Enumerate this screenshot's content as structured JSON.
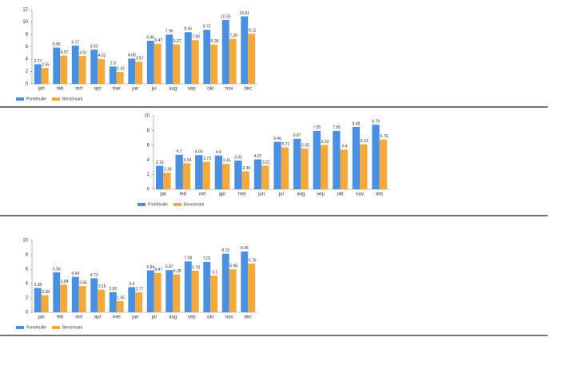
{
  "chart_data": [
    {
      "type": "bar",
      "categories": [
        "jan",
        "feb",
        "mrt",
        "apr",
        "mei",
        "jun",
        "jul",
        "aug",
        "sep",
        "okt",
        "nov",
        "dec"
      ],
      "series": [
        {
          "name": "Portefeuille",
          "color": "#4a90e2",
          "values": [
            3.17,
            5.86,
            6.17,
            5.53,
            2.8,
            4.08,
            6.96,
            7.96,
            8.35,
            8.72,
            10.33,
            10.91
          ]
        },
        {
          "name": "Benchmark",
          "color": "#f5a93a",
          "values": [
            2.55,
            4.57,
            4.51,
            4.02,
            1.92,
            3.57,
            6.47,
            6.37,
            7.06,
            6.36,
            7.28,
            8.11
          ]
        }
      ],
      "ylim": [
        0,
        12
      ],
      "yticks": [
        0,
        2,
        4,
        6,
        8,
        10,
        12
      ],
      "legend": "bottom-left"
    },
    {
      "type": "bar",
      "categories": [
        "jan",
        "feb",
        "mrt",
        "apr",
        "mei",
        "jun",
        "jul",
        "aug",
        "sep",
        "okt",
        "nov",
        "dec"
      ],
      "series": [
        {
          "name": "Portefeuille",
          "color": "#4a90e2",
          "values": [
            3.19,
            4.7,
            4.65,
            4.6,
            3.91,
            4.07,
            6.46,
            6.87,
            7.95,
            7.95,
            8.48,
            8.79
          ]
        },
        {
          "name": "Benchmark",
          "color": "#f5a93a",
          "values": [
            2.26,
            3.54,
            3.73,
            3.45,
            2.45,
            3.22,
            5.71,
            5.55,
            6.02,
            5.4,
            6.12,
            6.76
          ]
        }
      ],
      "ylim": [
        0,
        10
      ],
      "yticks": [
        0,
        2,
        4,
        6,
        8,
        10
      ],
      "legend": "bottom-left"
    },
    {
      "type": "bar",
      "categories": [
        "jan",
        "feb",
        "mrt",
        "apr",
        "mei",
        "jun",
        "jul",
        "aug",
        "sep",
        "okt",
        "nov",
        "dec"
      ],
      "series": [
        {
          "name": "Portefeuille",
          "color": "#4a90e2",
          "values": [
            3.38,
            5.56,
            4.94,
            4.73,
            2.82,
            3.5,
            5.84,
            5.87,
            7.08,
            7.01,
            8.15,
            8.46
          ]
        },
        {
          "name": "Benchmark",
          "color": "#f5a93a",
          "values": [
            2.38,
            3.84,
            3.65,
            3.16,
            1.55,
            2.77,
            5.47,
            5.28,
            5.78,
            5.1,
            5.98,
            6.76
          ]
        }
      ],
      "ylim": [
        0,
        10
      ],
      "yticks": [
        0,
        2,
        4,
        6,
        8,
        10
      ],
      "legend": "bottom-left"
    }
  ]
}
